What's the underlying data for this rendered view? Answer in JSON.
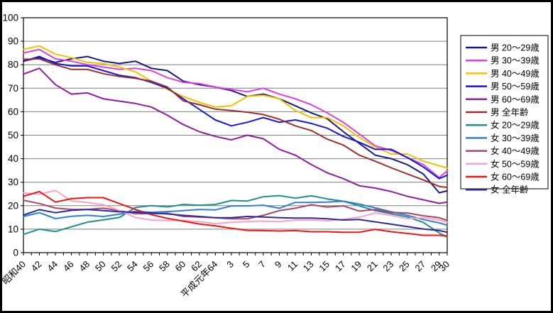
{
  "chart_data": {
    "type": "line",
    "title": "",
    "grid": "horizontal",
    "legend_position": "right",
    "x_axis": {
      "range_years": [
        1965,
        2018
      ],
      "minor_tick_step_years": 1,
      "tick_years": [
        1965,
        1967,
        1969,
        1971,
        1973,
        1975,
        1977,
        1979,
        1981,
        1983,
        1985,
        1987,
        1989,
        1991,
        1993,
        1995,
        1997,
        1999,
        2001,
        2003,
        2005,
        2007,
        2009,
        2011,
        2013,
        2015,
        2017,
        2018
      ],
      "tick_labels": [
        "昭和40",
        "42",
        "44",
        "46",
        "48",
        "50",
        "52",
        "54",
        "56",
        "58",
        "60",
        "62",
        "平成元年64",
        "3",
        "5",
        "7",
        "9",
        "11",
        "13",
        "15",
        "17",
        "19",
        "21",
        "23",
        "25",
        "27",
        "29",
        "30"
      ]
    },
    "y_axis": {
      "min": 0,
      "max": 100,
      "step": 10,
      "tick_labels": [
        "0",
        "10",
        "20",
        "30",
        "40",
        "50",
        "60",
        "70",
        "80",
        "90",
        "100"
      ]
    },
    "series": [
      {
        "name": "男 20〜29歳",
        "color": "#1a1a85",
        "values": [
          81.5,
          83.0,
          81.0,
          82.5,
          83.5,
          81.5,
          80.5,
          81.5,
          78.5,
          77.5,
          73.0,
          71.5,
          70.5,
          69.0,
          66.5,
          67.5,
          65.5,
          62.5,
          59.5,
          57.0,
          51.5,
          46.5,
          41.5,
          40.0,
          37.5,
          33.5,
          25.5,
          26.3
        ]
      },
      {
        "name": "男 30〜39歳",
        "color": "#e03ee0",
        "values": [
          85.0,
          86.5,
          82.5,
          81.5,
          80.0,
          79.0,
          78.0,
          78.5,
          77.5,
          74.5,
          72.5,
          72.0,
          70.5,
          69.5,
          68.5,
          70.0,
          67.5,
          65.5,
          63.0,
          59.5,
          55.5,
          50.5,
          45.5,
          43.5,
          40.5,
          37.5,
          32.0,
          34.8
        ]
      },
      {
        "name": "男 40〜49歳",
        "color": "#f2c200",
        "values": [
          86.5,
          88.0,
          84.5,
          83.0,
          81.0,
          80.5,
          79.0,
          77.0,
          73.0,
          69.5,
          66.5,
          64.0,
          62.0,
          62.5,
          66.5,
          67.0,
          65.5,
          60.5,
          57.5,
          57.5,
          54.0,
          49.0,
          45.0,
          42.0,
          42.0,
          39.0,
          37.0,
          36.0
        ]
      },
      {
        "name": "男 50〜59歳",
        "color": "#1616e0",
        "values": [
          81.5,
          83.5,
          80.5,
          79.5,
          79.5,
          77.5,
          75.5,
          74.5,
          72.5,
          70.0,
          65.5,
          61.0,
          56.5,
          54.0,
          55.5,
          57.5,
          55.5,
          56.5,
          55.0,
          53.0,
          49.5,
          47.0,
          44.0,
          44.0,
          40.5,
          36.5,
          31.5,
          33.0
        ]
      },
      {
        "name": "男 60〜69歳",
        "color": "#8c1f9e",
        "values": [
          76.0,
          78.5,
          71.5,
          67.5,
          68.0,
          65.5,
          64.5,
          63.5,
          62.0,
          58.5,
          54.5,
          51.5,
          49.5,
          48.0,
          50.0,
          48.5,
          44.0,
          41.5,
          37.5,
          34.0,
          31.5,
          28.5,
          27.5,
          26.0,
          24.0,
          22.5,
          21.0,
          21.5
        ]
      },
      {
        "name": "男 全年齢",
        "color": "#9e2f2f",
        "values": [
          82.3,
          82.5,
          80.0,
          78.0,
          78.0,
          76.2,
          75.0,
          74.2,
          73.0,
          70.5,
          64.6,
          63.0,
          61.1,
          60.5,
          59.8,
          58.8,
          56.8,
          54.0,
          52.0,
          48.3,
          45.8,
          41.5,
          38.9,
          36.1,
          33.5,
          31.0,
          28.2,
          27.8
        ]
      },
      {
        "name": "女 20〜29歳",
        "color": "#1d9090",
        "values": [
          7.8,
          10.0,
          9.0,
          11.0,
          13.0,
          14.0,
          15.0,
          19.2,
          20.0,
          19.5,
          20.5,
          20.2,
          20.5,
          22.2,
          22.0,
          23.8,
          24.3,
          23.2,
          24.2,
          22.9,
          21.9,
          19.9,
          17.9,
          16.6,
          15.2,
          12.9,
          8.4,
          6.6
        ]
      },
      {
        "name": "女 30〜39歳",
        "color": "#2f7fd6",
        "values": [
          15.4,
          17.0,
          14.5,
          15.5,
          15.9,
          15.4,
          16.4,
          17.6,
          17.2,
          17.5,
          17.9,
          18.4,
          18.2,
          19.9,
          19.9,
          20.2,
          18.9,
          21.4,
          21.4,
          21.5,
          21.9,
          20.7,
          19.1,
          17.4,
          15.9,
          14.1,
          12.7,
          11.7
        ]
      },
      {
        "name": "女 40〜49歳",
        "color": "#ac4468",
        "values": [
          22.3,
          20.9,
          19.0,
          18.4,
          18.4,
          18.9,
          17.9,
          16.6,
          16.6,
          16.8,
          15.4,
          15.2,
          14.9,
          14.4,
          14.4,
          15.9,
          17.9,
          18.9,
          20.4,
          19.4,
          19.9,
          17.7,
          18.4,
          17.1,
          16.9,
          15.7,
          14.9,
          13.7
        ]
      },
      {
        "name": "女 50〜59歳",
        "color": "#ffa0c8",
        "values": [
          25.4,
          24.9,
          26.5,
          22.0,
          21.4,
          20.4,
          18.0,
          15.0,
          13.9,
          13.7,
          13.7,
          13.2,
          12.4,
          12.9,
          13.2,
          13.4,
          13.2,
          13.9,
          13.9,
          13.6,
          14.2,
          15.1,
          16.9,
          15.9,
          14.4,
          14.9,
          13.9,
          12.9
        ]
      },
      {
        "name": "女 60〜69歳",
        "color": "#ee1515",
        "values": [
          24.0,
          26.0,
          21.5,
          23.0,
          23.4,
          23.4,
          20.9,
          18.4,
          16.2,
          14.6,
          13.4,
          12.2,
          11.4,
          10.4,
          9.5,
          9.4,
          9.2,
          9.4,
          8.9,
          8.9,
          8.7,
          8.7,
          9.9,
          8.9,
          8.2,
          7.4,
          7.4,
          7.1
        ]
      },
      {
        "name": "女 全年齢",
        "color": "#2b2b9e",
        "values": [
          16.0,
          18.3,
          17.0,
          18.0,
          18.4,
          17.9,
          17.4,
          17.2,
          16.9,
          16.5,
          15.9,
          15.4,
          14.9,
          14.9,
          15.4,
          15.2,
          14.9,
          14.7,
          14.7,
          14.4,
          13.9,
          14.1,
          13.1,
          12.1,
          11.1,
          10.1,
          9.4,
          8.7
        ]
      }
    ],
    "style": {
      "plot_border_color": "#000000",
      "gridline_color": "#7f7f7f",
      "background": "#ffffff",
      "legend_border_color": "#000000"
    }
  }
}
